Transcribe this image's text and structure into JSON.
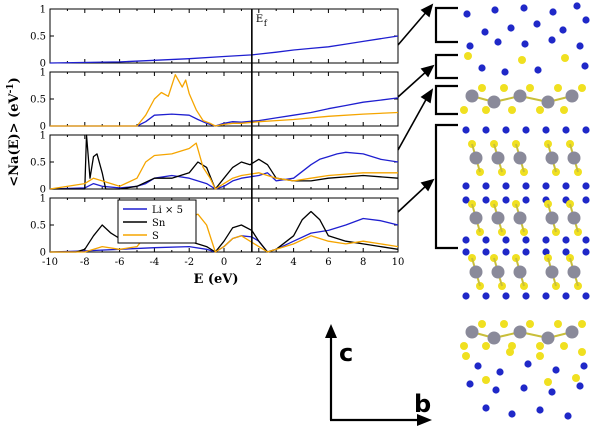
{
  "chart_data": {
    "type": "line",
    "panels": 4,
    "xlabel": "E  (eV)",
    "ylabel": "<Na(E)>  (eV",
    "ylabel_sup_a": "a",
    "ylabel_sup_unit": "-1",
    "ylabel_close": ")",
    "xlim": [
      -10,
      10
    ],
    "ylim": [
      0,
      1
    ],
    "xticks": [
      "-10",
      "-8",
      "-6",
      "-4",
      "-2",
      "0",
      "2",
      "4",
      "6",
      "8",
      "10"
    ],
    "yticks": [
      "0",
      "0.5",
      "1"
    ],
    "fermi_label": "E",
    "fermi_sub": "f",
    "fermi_energy": 1.6,
    "legend": {
      "placement": "inside bottom panel, center",
      "entries": [
        {
          "label": "Li × 5",
          "color": "#1f1fd0"
        },
        {
          "label": "Sn",
          "color": "#000000"
        },
        {
          "label": "S",
          "color": "#f5a500"
        }
      ]
    },
    "series": [
      {
        "panel": 0,
        "name": "Li × 5",
        "color": "#1f1fd0",
        "points": [
          [
            -10,
            0
          ],
          [
            -6,
            0.02
          ],
          [
            -4,
            0.05
          ],
          [
            -2,
            0.08
          ],
          [
            0,
            0.12
          ],
          [
            1.6,
            0.15
          ],
          [
            3,
            0.2
          ],
          [
            4,
            0.24
          ],
          [
            5,
            0.27
          ],
          [
            6,
            0.3
          ],
          [
            7,
            0.35
          ],
          [
            8,
            0.4
          ],
          [
            9,
            0.45
          ],
          [
            10,
            0.5
          ]
        ]
      },
      {
        "panel": 1,
        "name": "Li × 5",
        "color": "#1f1fd0",
        "points": [
          [
            -10,
            0
          ],
          [
            -5,
            0
          ],
          [
            -4.5,
            0.08
          ],
          [
            -4,
            0.2
          ],
          [
            -3,
            0.22
          ],
          [
            -2,
            0.2
          ],
          [
            -1.5,
            0.12
          ],
          [
            -1,
            0.05
          ],
          [
            -0.5,
            0
          ],
          [
            0,
            0.05
          ],
          [
            0.5,
            0.08
          ],
          [
            1,
            0.07
          ],
          [
            2,
            0.1
          ],
          [
            3,
            0.15
          ],
          [
            4,
            0.2
          ],
          [
            5,
            0.25
          ],
          [
            6,
            0.32
          ],
          [
            7,
            0.38
          ],
          [
            8,
            0.44
          ],
          [
            9,
            0.48
          ],
          [
            10,
            0.52
          ]
        ]
      },
      {
        "panel": 1,
        "name": "S",
        "color": "#f5a500",
        "points": [
          [
            -10,
            0
          ],
          [
            -5,
            0
          ],
          [
            -4.5,
            0.2
          ],
          [
            -4,
            0.5
          ],
          [
            -3.6,
            0.62
          ],
          [
            -3.2,
            0.55
          ],
          [
            -2.8,
            0.95
          ],
          [
            -2.4,
            0.72
          ],
          [
            -2.2,
            0.85
          ],
          [
            -2,
            0.6
          ],
          [
            -1.6,
            0.3
          ],
          [
            -1.2,
            0.1
          ],
          [
            -0.8,
            0.05
          ],
          [
            -0.5,
            0
          ],
          [
            0,
            0.03
          ],
          [
            0.5,
            0.05
          ],
          [
            1,
            0.05
          ],
          [
            2,
            0.08
          ],
          [
            3,
            0.1
          ],
          [
            4,
            0.12
          ],
          [
            6,
            0.18
          ],
          [
            8,
            0.22
          ],
          [
            10,
            0.25
          ]
        ]
      },
      {
        "panel": 2,
        "name": "Li × 5",
        "color": "#1f1fd0",
        "points": [
          [
            -10,
            0
          ],
          [
            -8,
            0.02
          ],
          [
            -7.5,
            0.1
          ],
          [
            -7,
            0.05
          ],
          [
            -6,
            0.02
          ],
          [
            -5,
            0.05
          ],
          [
            -4.5,
            0.1
          ],
          [
            -4,
            0.2
          ],
          [
            -3,
            0.25
          ],
          [
            -2,
            0.2
          ],
          [
            -1,
            0.1
          ],
          [
            -0.5,
            0
          ],
          [
            0,
            0.05
          ],
          [
            0.5,
            0.15
          ],
          [
            1,
            0.2
          ],
          [
            2,
            0.25
          ],
          [
            2.5,
            0.3
          ],
          [
            3,
            0.15
          ],
          [
            4,
            0.2
          ],
          [
            5,
            0.45
          ],
          [
            5.5,
            0.55
          ],
          [
            6,
            0.6
          ],
          [
            6.5,
            0.65
          ],
          [
            7,
            0.68
          ],
          [
            8,
            0.65
          ],
          [
            9,
            0.55
          ],
          [
            10,
            0.5
          ]
        ]
      },
      {
        "panel": 2,
        "name": "Sn",
        "color": "#000000",
        "points": [
          [
            -10,
            0
          ],
          [
            -8,
            0
          ],
          [
            -7.9,
            1.0
          ],
          [
            -7.7,
            0.2
          ],
          [
            -7.5,
            0.6
          ],
          [
            -7.3,
            0.65
          ],
          [
            -7,
            0.3
          ],
          [
            -6.8,
            0
          ],
          [
            -6,
            0
          ],
          [
            -5,
            0.05
          ],
          [
            -4,
            0.2
          ],
          [
            -3,
            0.2
          ],
          [
            -2,
            0.3
          ],
          [
            -1.5,
            0.5
          ],
          [
            -1,
            0.4
          ],
          [
            -0.5,
            0
          ],
          [
            0,
            0.2
          ],
          [
            0.5,
            0.4
          ],
          [
            1,
            0.5
          ],
          [
            1.5,
            0.45
          ],
          [
            2,
            0.55
          ],
          [
            2.5,
            0.45
          ],
          [
            3,
            0.2
          ],
          [
            4,
            0.15
          ],
          [
            5,
            0.15
          ],
          [
            6,
            0.2
          ],
          [
            8,
            0.25
          ],
          [
            10,
            0.2
          ]
        ]
      },
      {
        "panel": 2,
        "name": "S",
        "color": "#f5a500",
        "points": [
          [
            -10,
            0
          ],
          [
            -8,
            0.1
          ],
          [
            -7.5,
            0.2
          ],
          [
            -7,
            0.15
          ],
          [
            -6,
            0.05
          ],
          [
            -5,
            0.2
          ],
          [
            -4.5,
            0.5
          ],
          [
            -4,
            0.62
          ],
          [
            -3,
            0.65
          ],
          [
            -2,
            0.75
          ],
          [
            -1.6,
            0.85
          ],
          [
            -1.2,
            0.4
          ],
          [
            -0.8,
            0.2
          ],
          [
            -0.5,
            0
          ],
          [
            0,
            0.1
          ],
          [
            0.5,
            0.2
          ],
          [
            1,
            0.25
          ],
          [
            2,
            0.3
          ],
          [
            3,
            0.2
          ],
          [
            4,
            0.15
          ],
          [
            5,
            0.2
          ],
          [
            6,
            0.25
          ],
          [
            8,
            0.3
          ],
          [
            10,
            0.3
          ]
        ]
      },
      {
        "panel": 3,
        "name": "Li × 5",
        "color": "#1f1fd0",
        "points": [
          [
            -10,
            0
          ],
          [
            -8,
            0.02
          ],
          [
            -6,
            0.05
          ],
          [
            -4,
            0.08
          ],
          [
            -2,
            0.1
          ],
          [
            -1,
            0.05
          ],
          [
            -0.5,
            0
          ],
          [
            0,
            0.1
          ],
          [
            0.5,
            0.25
          ],
          [
            1,
            0.3
          ],
          [
            1.6,
            0.28
          ],
          [
            2,
            0.2
          ],
          [
            2.5,
            0
          ],
          [
            3,
            0.05
          ],
          [
            4,
            0.2
          ],
          [
            5,
            0.35
          ],
          [
            6,
            0.4
          ],
          [
            7,
            0.5
          ],
          [
            8,
            0.62
          ],
          [
            9,
            0.58
          ],
          [
            10,
            0.5
          ]
        ]
      },
      {
        "panel": 3,
        "name": "Sn",
        "color": "#000000",
        "points": [
          [
            -10,
            0
          ],
          [
            -8.5,
            0
          ],
          [
            -8,
            0.05
          ],
          [
            -7.5,
            0.3
          ],
          [
            -7,
            0.5
          ],
          [
            -6.5,
            0.35
          ],
          [
            -6,
            0.25
          ],
          [
            -5,
            0.3
          ],
          [
            -4,
            0.45
          ],
          [
            -3,
            0.3
          ],
          [
            -2,
            0.2
          ],
          [
            -1,
            0.1
          ],
          [
            -0.5,
            0
          ],
          [
            0,
            0.2
          ],
          [
            0.5,
            0.45
          ],
          [
            1,
            0.5
          ],
          [
            1.6,
            0.4
          ],
          [
            2,
            0.2
          ],
          [
            2.5,
            0
          ],
          [
            3,
            0.05
          ],
          [
            4,
            0.3
          ],
          [
            4.5,
            0.6
          ],
          [
            5,
            0.75
          ],
          [
            5.5,
            0.6
          ],
          [
            6,
            0.3
          ],
          [
            7,
            0.2
          ],
          [
            8,
            0.15
          ],
          [
            9,
            0.1
          ],
          [
            10,
            0.05
          ]
        ]
      },
      {
        "panel": 3,
        "name": "S",
        "color": "#f5a500",
        "points": [
          [
            -10,
            0
          ],
          [
            -8,
            0
          ],
          [
            -7,
            0.1
          ],
          [
            -6,
            0.05
          ],
          [
            -5,
            0.1
          ],
          [
            -4.5,
            0.3
          ],
          [
            -4,
            0.55
          ],
          [
            -3,
            0.6
          ],
          [
            -2,
            0.65
          ],
          [
            -1.5,
            0.7
          ],
          [
            -1,
            0.5
          ],
          [
            -0.5,
            0
          ],
          [
            0,
            0.1
          ],
          [
            0.5,
            0.25
          ],
          [
            1,
            0.3
          ],
          [
            2,
            0.1
          ],
          [
            2.5,
            0
          ],
          [
            3,
            0.05
          ],
          [
            4,
            0.15
          ],
          [
            5,
            0.3
          ],
          [
            6,
            0.2
          ],
          [
            7,
            0.15
          ],
          [
            8,
            0.2
          ],
          [
            9,
            0.15
          ],
          [
            10,
            0.1
          ]
        ]
      }
    ]
  },
  "structure": {
    "axis_labels": {
      "vertical": "c",
      "horizontal": "b"
    },
    "colors": {
      "li": "#1f28c8",
      "sn": "#8a8a9a",
      "s": "#f0e020",
      "bond": "#c9bf3a"
    }
  }
}
